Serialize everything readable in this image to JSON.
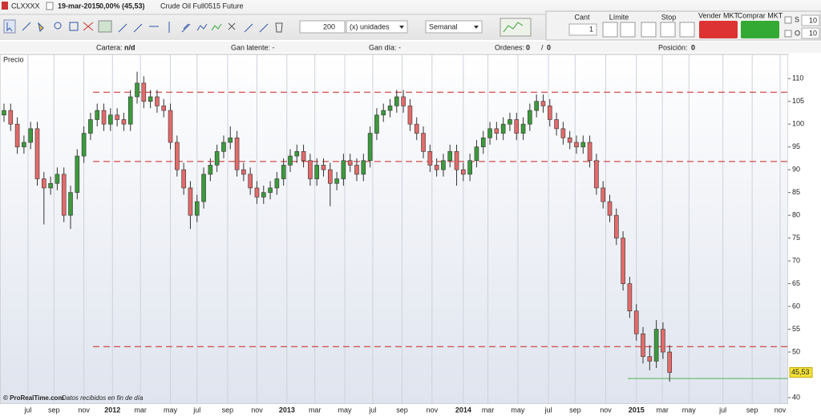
{
  "toolbar": {
    "symbol": "CLXXXX",
    "date": "19-mar-2015",
    "change": "0,00% (45,53)",
    "instrument": "Crude Oil Full0515 Future",
    "quantity": "200",
    "units": "(x) unidades",
    "period": "Semanal"
  },
  "order_panel": {
    "qty_label": "Cant",
    "qty": "1",
    "limit": "Límite",
    "stop": "Stop",
    "sell": "Vender MKT",
    "buy": "Comprar MKT",
    "s_label": "S",
    "s_value": "10",
    "o_label": "O",
    "o_value": "10"
  },
  "info_bar": {
    "portfolio_label": "Cartera:",
    "portfolio": "n/d",
    "unrealized": "Gan latente: -",
    "day_gain": "Gan día: -",
    "orders_label": "Ordenes:",
    "orders_a": "0",
    "orders_sep": "/",
    "orders_b": "0",
    "position_label": "Posición:",
    "position": "0"
  },
  "chart_data": {
    "type": "candlestick",
    "label": "Precio",
    "candles": [
      [
        102,
        104.5,
        100.5,
        103
      ],
      [
        103,
        104.5,
        98.5,
        100
      ],
      [
        100,
        101.5,
        93.5,
        95
      ],
      [
        95,
        97.5,
        93.5,
        96
      ],
      [
        96,
        100.5,
        94.5,
        99
      ],
      [
        99,
        100.5,
        86.5,
        88
      ],
      [
        88,
        89.5,
        78,
        86
      ],
      [
        86,
        88.5,
        84.5,
        87
      ],
      [
        87,
        90.5,
        85.5,
        89
      ],
      [
        89,
        90.5,
        78.5,
        80
      ],
      [
        80,
        86.5,
        77,
        85
      ],
      [
        85,
        94.5,
        83.5,
        93
      ],
      [
        93,
        99.5,
        91.5,
        98
      ],
      [
        98,
        102.5,
        96.5,
        101
      ],
      [
        101,
        104.5,
        99.5,
        103
      ],
      [
        103,
        104.5,
        98.5,
        100
      ],
      [
        100,
        103.5,
        98.5,
        102
      ],
      [
        102,
        103.5,
        99.5,
        101
      ],
      [
        101,
        102.5,
        98.5,
        100
      ],
      [
        100,
        107.5,
        98.5,
        106
      ],
      [
        106,
        111.5,
        104.5,
        109
      ],
      [
        109,
        110.5,
        103.5,
        105
      ],
      [
        105,
        107.5,
        103.5,
        106
      ],
      [
        106,
        107.5,
        102.5,
        104
      ],
      [
        104,
        105.5,
        101.5,
        103
      ],
      [
        103,
        104.5,
        94.5,
        96
      ],
      [
        96,
        97.5,
        88.5,
        90
      ],
      [
        90,
        91.5,
        84.5,
        86
      ],
      [
        86,
        87.5,
        77,
        80
      ],
      [
        80,
        84.5,
        78.5,
        83
      ],
      [
        83,
        90.5,
        81.5,
        89
      ],
      [
        89,
        92.5,
        87.5,
        91
      ],
      [
        91,
        95.5,
        89.5,
        94
      ],
      [
        94,
        97.5,
        92.5,
        96
      ],
      [
        96,
        99.5,
        94.5,
        97
      ],
      [
        97,
        98.5,
        88.5,
        90
      ],
      [
        90,
        91.5,
        87.5,
        89
      ],
      [
        89,
        90.5,
        84.5,
        86
      ],
      [
        86,
        87.5,
        82.5,
        84
      ],
      [
        84,
        86.5,
        82.5,
        85
      ],
      [
        85,
        87.5,
        83.5,
        86
      ],
      [
        86,
        89.5,
        84.5,
        88
      ],
      [
        88,
        92.5,
        86.5,
        91
      ],
      [
        91,
        94.5,
        89.5,
        93
      ],
      [
        93,
        95.5,
        91.5,
        94
      ],
      [
        94,
        95.5,
        90.5,
        92
      ],
      [
        92,
        93.5,
        86.5,
        88
      ],
      [
        88,
        92.5,
        86.5,
        91
      ],
      [
        91,
        92.5,
        88.5,
        90
      ],
      [
        90,
        91.5,
        82,
        87
      ],
      [
        87,
        89.5,
        85.5,
        88
      ],
      [
        88,
        93.5,
        86.5,
        92
      ],
      [
        92,
        93.5,
        89.5,
        91
      ],
      [
        91,
        92.5,
        87.5,
        89
      ],
      [
        89,
        93.5,
        87.5,
        92
      ],
      [
        92,
        99.5,
        90.5,
        98
      ],
      [
        98,
        103.5,
        96.5,
        102
      ],
      [
        102,
        104.5,
        100.5,
        103
      ],
      [
        103,
        105.5,
        101.5,
        104
      ],
      [
        104,
        107.5,
        102.5,
        106
      ],
      [
        106,
        107.5,
        102.5,
        104
      ],
      [
        104,
        105.5,
        98.5,
        100
      ],
      [
        100,
        101.5,
        96.5,
        98
      ],
      [
        98,
        99.5,
        92.5,
        94
      ],
      [
        94,
        95.5,
        89.5,
        91
      ],
      [
        91,
        92.5,
        88.5,
        90
      ],
      [
        90,
        93.5,
        88.5,
        92
      ],
      [
        92,
        95.5,
        90.5,
        94
      ],
      [
        94,
        95.5,
        86.5,
        90
      ],
      [
        90,
        91.5,
        87.5,
        89
      ],
      [
        89,
        93.5,
        87.5,
        92
      ],
      [
        92,
        96.5,
        90.5,
        95
      ],
      [
        95,
        98.5,
        93.5,
        97
      ],
      [
        97,
        100.5,
        95.5,
        99
      ],
      [
        99,
        100.5,
        96.5,
        98
      ],
      [
        98,
        101.5,
        96.5,
        100
      ],
      [
        100,
        102.5,
        98.5,
        101
      ],
      [
        101,
        102.5,
        96.5,
        98
      ],
      [
        98,
        101.5,
        96.5,
        100
      ],
      [
        100,
        104.5,
        98.5,
        103
      ],
      [
        103,
        106.5,
        101.5,
        105
      ],
      [
        105,
        106.5,
        102.5,
        104
      ],
      [
        104,
        105.5,
        99.5,
        101
      ],
      [
        101,
        102.5,
        97.5,
        99
      ],
      [
        99,
        100.5,
        95.5,
        97
      ],
      [
        97,
        98.5,
        94.5,
        96
      ],
      [
        96,
        97.5,
        93.5,
        95
      ],
      [
        95,
        97.5,
        93.5,
        96
      ],
      [
        96,
        97.5,
        90.5,
        92
      ],
      [
        92,
        93.5,
        84.5,
        86
      ],
      [
        86,
        87.5,
        81.5,
        83
      ],
      [
        83,
        84.5,
        78.5,
        80
      ],
      [
        80,
        81.5,
        73.5,
        75
      ],
      [
        75,
        76.5,
        63.5,
        65
      ],
      [
        65,
        66.5,
        57.5,
        59
      ],
      [
        59,
        60.5,
        52.5,
        54
      ],
      [
        54,
        55.5,
        47.5,
        49
      ],
      [
        49,
        51.5,
        46,
        48
      ],
      [
        48,
        57,
        46.5,
        55
      ],
      [
        55,
        56.5,
        48.5,
        50
      ],
      [
        50,
        51.5,
        43.5,
        45.53
      ]
    ],
    "up_color": "#3c9a3c",
    "down_color": "#e36b6b",
    "xlim": [
      -0.6,
      117.8
    ],
    "xticks": [
      {
        "value": 3.6,
        "label": "jul"
      },
      {
        "value": 7.5,
        "label": "sep"
      },
      {
        "value": 12,
        "label": "nov"
      },
      {
        "value": 16.3,
        "label": "2012"
      },
      {
        "value": 20.5,
        "label": "mar"
      },
      {
        "value": 25,
        "label": "may"
      },
      {
        "value": 29,
        "label": "jul"
      },
      {
        "value": 33.6,
        "label": "sep"
      },
      {
        "value": 38,
        "label": "nov"
      },
      {
        "value": 42.5,
        "label": "2013"
      },
      {
        "value": 46.7,
        "label": "mar"
      },
      {
        "value": 51.2,
        "label": "may"
      },
      {
        "value": 55.4,
        "label": "jul"
      },
      {
        "value": 59.8,
        "label": "sep"
      },
      {
        "value": 64.3,
        "label": "nov"
      },
      {
        "value": 69,
        "label": "2014"
      },
      {
        "value": 72.7,
        "label": "mar"
      },
      {
        "value": 77.2,
        "label": "may"
      },
      {
        "value": 81.8,
        "label": "jul"
      },
      {
        "value": 85.8,
        "label": "sep"
      },
      {
        "value": 90.4,
        "label": "nov"
      },
      {
        "value": 95,
        "label": "2015"
      },
      {
        "value": 98.9,
        "label": "mar"
      },
      {
        "value": 102.9,
        "label": "may"
      },
      {
        "value": 108,
        "label": "jul"
      },
      {
        "value": 112.4,
        "label": "sep"
      },
      {
        "value": 116.6,
        "label": "nov"
      }
    ],
    "ylim": [
      38.6,
      115.3
    ],
    "yticks": [
      40,
      50,
      55,
      60,
      65,
      70,
      75,
      80,
      85,
      90,
      95,
      100,
      105,
      110
    ],
    "levels": [
      {
        "value": 107,
        "color": "#cc2222"
      },
      {
        "value": 91.8,
        "color": "#cc2222"
      },
      {
        "value": 51.2,
        "color": "#cc2222"
      }
    ],
    "support": {
      "value": 44.2,
      "color": "#55b055"
    },
    "last_price": 45.53,
    "last_price_label": "45,53",
    "vertical_grid": true
  },
  "footer": {
    "copyright": "© ProRealTime.com",
    "note": "Datos recibidos en fin de día"
  }
}
